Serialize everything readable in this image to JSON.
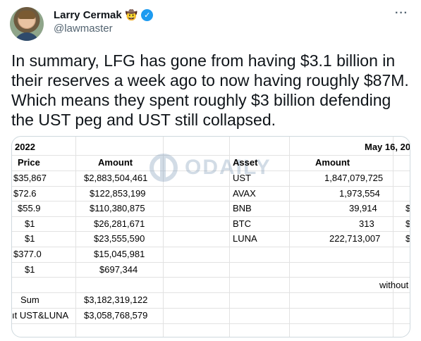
{
  "author": {
    "display_name": "Larry Cermak",
    "emoji": "🤠",
    "handle": "@lawmaster",
    "verified_glyph": "✓"
  },
  "more_glyph": "···",
  "tweet_text": "In summary, LFG has gone from having $3.1 billion in their reserves a week ago to now having roughly $87M. Which means they spent roughly $3 billion defending the UST peg and UST still collapsed.",
  "sheet": {
    "left_date": "2022",
    "right_date": "May 16, 20",
    "left_headers": {
      "price": "Price",
      "amount": "Amount"
    },
    "right_headers": {
      "asset": "Asset",
      "amount": "Amount"
    },
    "left_rows": [
      {
        "price": "$35,867",
        "amount": "$2,883,504,461"
      },
      {
        "price": "$72.6",
        "amount": "$122,853,199"
      },
      {
        "price": "$55.9",
        "amount": "$110,380,875"
      },
      {
        "price": "$1",
        "amount": "$26,281,671"
      },
      {
        "price": "$1",
        "amount": "$23,555,590"
      },
      {
        "price": "$377.0",
        "amount": "$15,045,981"
      },
      {
        "price": "$1",
        "amount": "$697,344"
      }
    ],
    "right_rows": [
      {
        "asset": "UST",
        "amount": "1,847,079,725",
        "edge": ""
      },
      {
        "asset": "AVAX",
        "amount": "1,973,554",
        "edge": ""
      },
      {
        "asset": "BNB",
        "amount": "39,914",
        "edge": "$"
      },
      {
        "asset": "BTC",
        "amount": "313",
        "edge": "$"
      },
      {
        "asset": "LUNA",
        "amount": "222,713,007",
        "edge": "$"
      }
    ],
    "without_label": "without",
    "sum_label": "Sum",
    "sum_value": "$3,182,319,122",
    "excl_label": "ıt UST&LUNA",
    "excl_value": "$3,058,768,579",
    "watermark_text": "ODAILY"
  }
}
